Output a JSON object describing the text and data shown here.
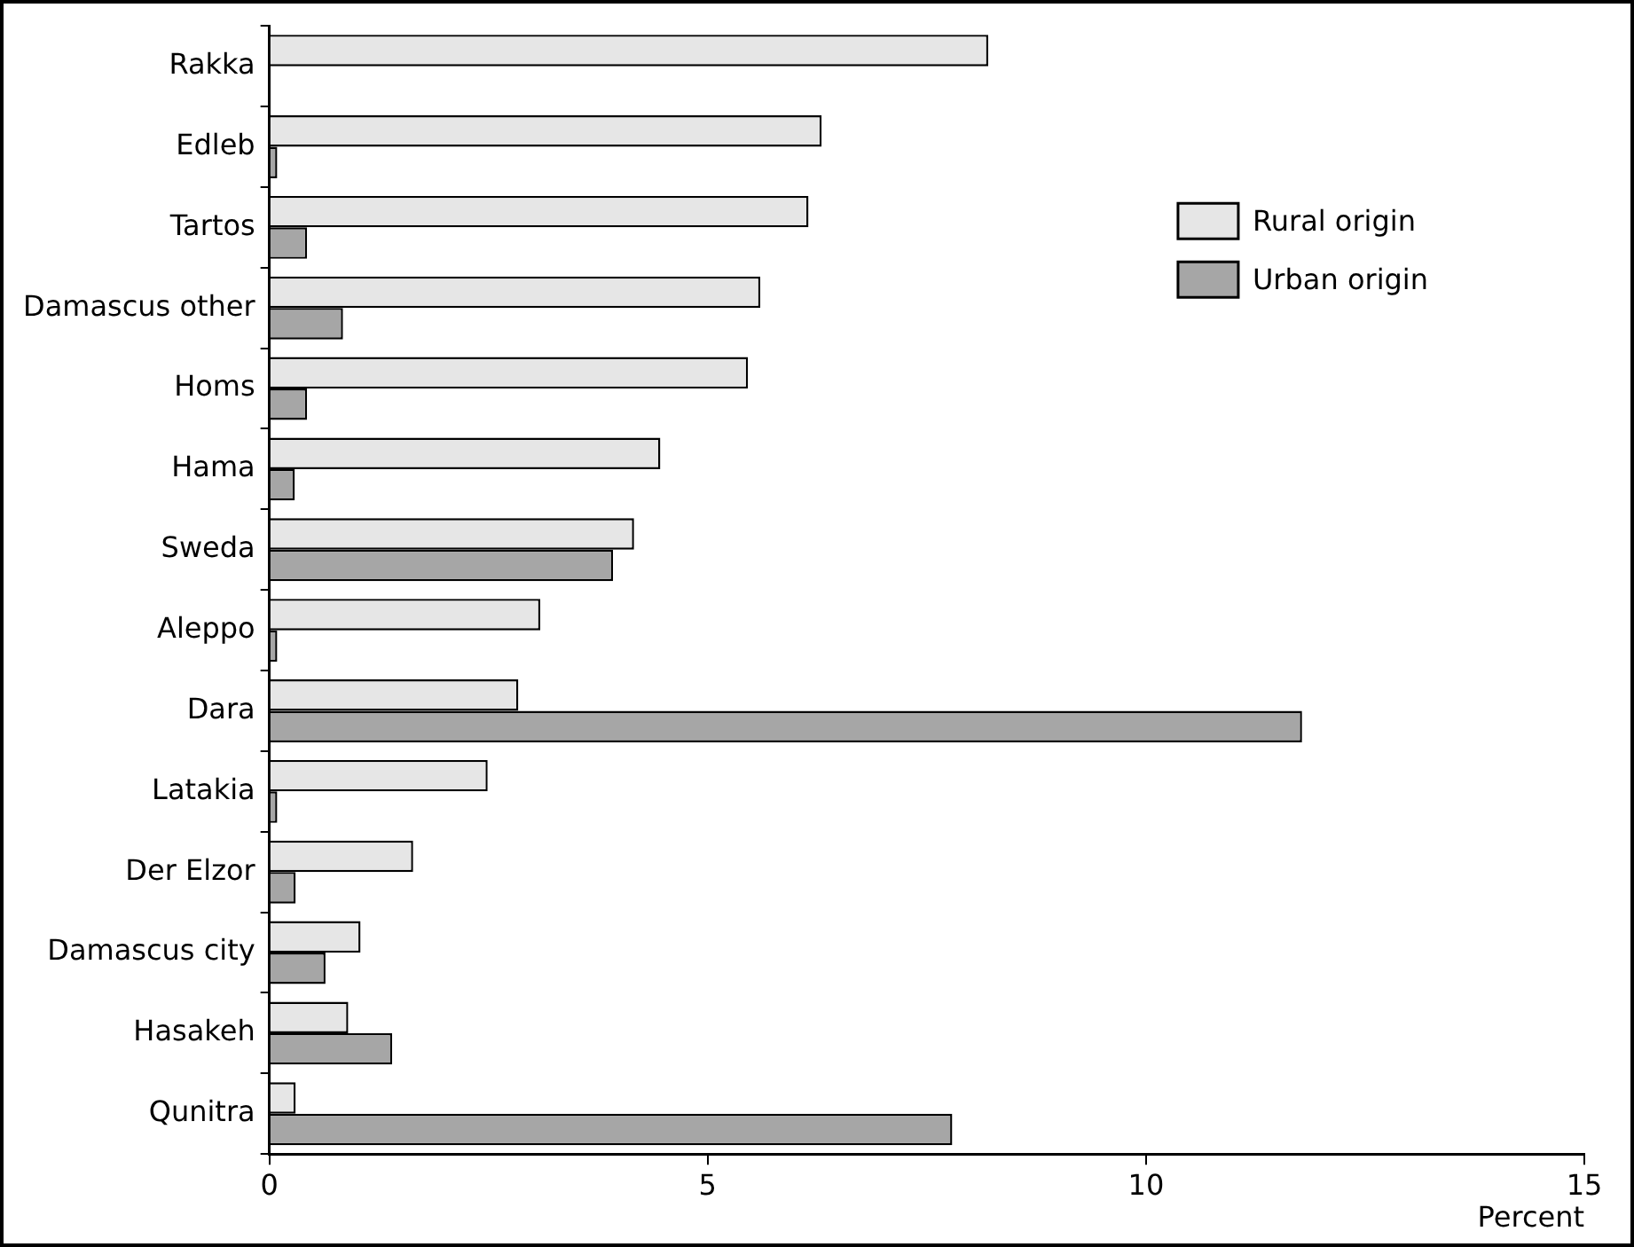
{
  "chart_data": {
    "type": "bar",
    "orientation": "horizontal",
    "xlabel": "Percent",
    "categories": [
      "Rakka",
      "Edleb",
      "Tartos",
      "Damascus other",
      "Homs",
      "Hama",
      "Sweda",
      "Aleppo",
      "Dara",
      "Latakia",
      "Der Elzor",
      "Damascus city",
      "Hasakeh",
      "Qunitra"
    ],
    "series": [
      {
        "name": "Rural origin",
        "color": "#e6e6e6",
        "values": [
          8.2,
          6.3,
          6.15,
          5.6,
          5.46,
          4.46,
          4.16,
          3.09,
          2.84,
          2.49,
          1.64,
          1.04,
          0.9,
          0.3
        ]
      },
      {
        "name": "Urban origin",
        "color": "#a6a6a6",
        "values": [
          null,
          0.09,
          0.43,
          0.84,
          0.43,
          0.29,
          3.92,
          0.09,
          11.78,
          0.09,
          0.3,
          0.64,
          1.4,
          7.79
        ]
      }
    ],
    "xlim": [
      0,
      15
    ],
    "xticks": [
      0,
      5,
      10,
      15
    ],
    "grid": false,
    "legend": "top right"
  }
}
